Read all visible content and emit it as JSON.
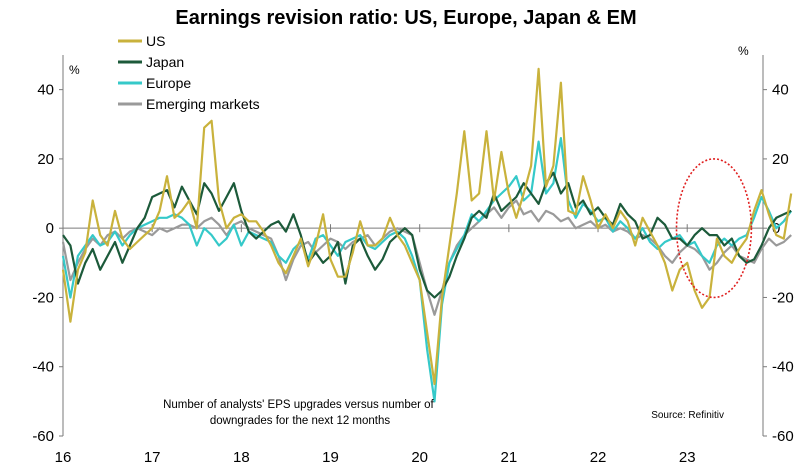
{
  "chart_data": {
    "type": "line",
    "title": "Earnings revision ratio: US, Europe, Japan & EM",
    "y_unit_left": "%",
    "y_unit_right": "%",
    "ylim": [
      -60,
      50
    ],
    "yticks": [
      40,
      20,
      0,
      -20,
      -40,
      -60
    ],
    "yticks_labels": [
      "40",
      "20",
      "0",
      "-20",
      "-40",
      "-60"
    ],
    "xlim": [
      2016.0,
      2023.85
    ],
    "xticks": [
      2016,
      2017,
      2018,
      2019,
      2020,
      2021,
      2022,
      2023
    ],
    "xticks_labels": [
      "16",
      "17",
      "18",
      "19",
      "20",
      "21",
      "22",
      "23"
    ],
    "x_start": 2016.0,
    "x_step": 0.08333,
    "annotation": "Number of analysts' EPS upgrades versus number of downgrades for the next 12 months",
    "annotation_lines": [
      "Number of analysts' EPS upgrades versus number of",
      "downgrades for the next 12 months"
    ],
    "source": "Source: Refinitiv",
    "highlight": {
      "x_center": 2023.3,
      "y_center": 0,
      "x_radius": 0.42,
      "y_radius": 20,
      "color": "#e02020"
    },
    "series": [
      {
        "name": "US",
        "color": "#c9b23c",
        "values": [
          -12,
          -27,
          -12,
          -7,
          8,
          -2,
          -5,
          5,
          -3,
          -6,
          -4,
          -2,
          0,
          5,
          15,
          3,
          5,
          8,
          0,
          29,
          31,
          8,
          0,
          3,
          4,
          2,
          2,
          -1,
          -5,
          -10,
          -13,
          -8,
          -3,
          -11,
          -5,
          4,
          -9,
          -14,
          -14,
          -7,
          2,
          -5,
          -5,
          -3,
          3,
          -2,
          -5,
          -10,
          -15,
          -30,
          -45,
          -20,
          -5,
          10,
          28,
          8,
          10,
          28,
          8,
          22,
          10,
          3,
          10,
          18,
          46,
          12,
          18,
          42,
          5,
          4,
          15,
          8,
          0,
          4,
          0,
          5,
          2,
          -5,
          3,
          -1,
          -5,
          -10,
          -18,
          -12,
          -10,
          -18,
          -23,
          -20,
          -3,
          -8,
          -10,
          -6,
          -3,
          5,
          11,
          4,
          -2,
          -3,
          10
        ]
      },
      {
        "name": "Japan",
        "color": "#1c5a3a",
        "values": [
          -2,
          -5,
          -16,
          -10,
          -6,
          -12,
          -8,
          -4,
          -10,
          -5,
          0,
          3,
          9,
          10,
          11,
          6,
          12,
          8,
          4,
          13,
          10,
          5,
          9,
          13,
          5,
          -1,
          -3,
          -1,
          1,
          2,
          -1,
          4,
          -2,
          -10,
          -7,
          -10,
          -8,
          -4,
          -16,
          -5,
          -3,
          -8,
          -12,
          -9,
          -4,
          -2,
          0,
          -2,
          -12,
          -18,
          -20,
          -18,
          -14,
          -8,
          -3,
          3,
          5,
          3,
          10,
          5,
          7,
          9,
          13,
          10,
          7,
          13,
          16,
          10,
          13,
          6,
          8,
          4,
          6,
          3,
          1,
          7,
          4,
          2,
          -3,
          -2,
          3,
          1,
          -3,
          -3,
          -5,
          -2,
          0,
          -2,
          -2,
          -5,
          -3,
          -8,
          -10,
          -9,
          -5,
          0,
          3,
          4,
          5
        ]
      },
      {
        "name": "Europe",
        "color": "#35c9c9",
        "values": [
          -8,
          -20,
          -8,
          -5,
          -2,
          -5,
          -4,
          -1,
          -5,
          -2,
          0,
          1,
          2,
          3,
          3,
          4,
          3,
          1,
          -5,
          0,
          -2,
          -5,
          -3,
          1,
          -5,
          -1,
          -2,
          -3,
          -4,
          -8,
          -10,
          -6,
          -4,
          -9,
          -3,
          -2,
          -5,
          -8,
          -4,
          -3,
          -2,
          -5,
          -6,
          -4,
          -2,
          -1,
          -3,
          -8,
          -15,
          -35,
          -50,
          -22,
          -10,
          -6,
          -2,
          4,
          2,
          5,
          8,
          10,
          12,
          15,
          8,
          10,
          25,
          10,
          13,
          26,
          8,
          3,
          7,
          5,
          2,
          3,
          -1,
          2,
          0,
          -3,
          0,
          -4,
          -6,
          -4,
          -3,
          -2,
          -5,
          -4,
          -8,
          -10,
          -5,
          -3,
          -5,
          -3,
          -2,
          3,
          9,
          5,
          0,
          2,
          5
        ]
      },
      {
        "name": "Emerging markets",
        "color": "#9a9a9a",
        "values": [
          -4,
          -15,
          -10,
          -6,
          -3,
          -5,
          -2,
          -1,
          -3,
          -1,
          0,
          -1,
          -2,
          0,
          -1,
          0,
          1,
          1,
          0,
          2,
          3,
          1,
          -2,
          1,
          2,
          0,
          -1,
          -2,
          -3,
          -8,
          -15,
          -9,
          -5,
          -4,
          -7,
          -5,
          -3,
          -4,
          -6,
          -4,
          -3,
          -2,
          -5,
          -3,
          -1,
          0,
          -1,
          -2,
          -10,
          -18,
          -25,
          -18,
          -10,
          -5,
          -2,
          0,
          2,
          4,
          6,
          3,
          6,
          8,
          4,
          5,
          2,
          5,
          4,
          2,
          3,
          0,
          1,
          2,
          0,
          1,
          -1,
          0,
          -1,
          -3,
          -2,
          -3,
          -5,
          -8,
          -10,
          -7,
          -5,
          -6,
          -8,
          -12,
          -10,
          -7,
          -5,
          -8,
          -9,
          -10,
          -6,
          -3,
          -5,
          -4,
          -2
        ]
      }
    ]
  }
}
